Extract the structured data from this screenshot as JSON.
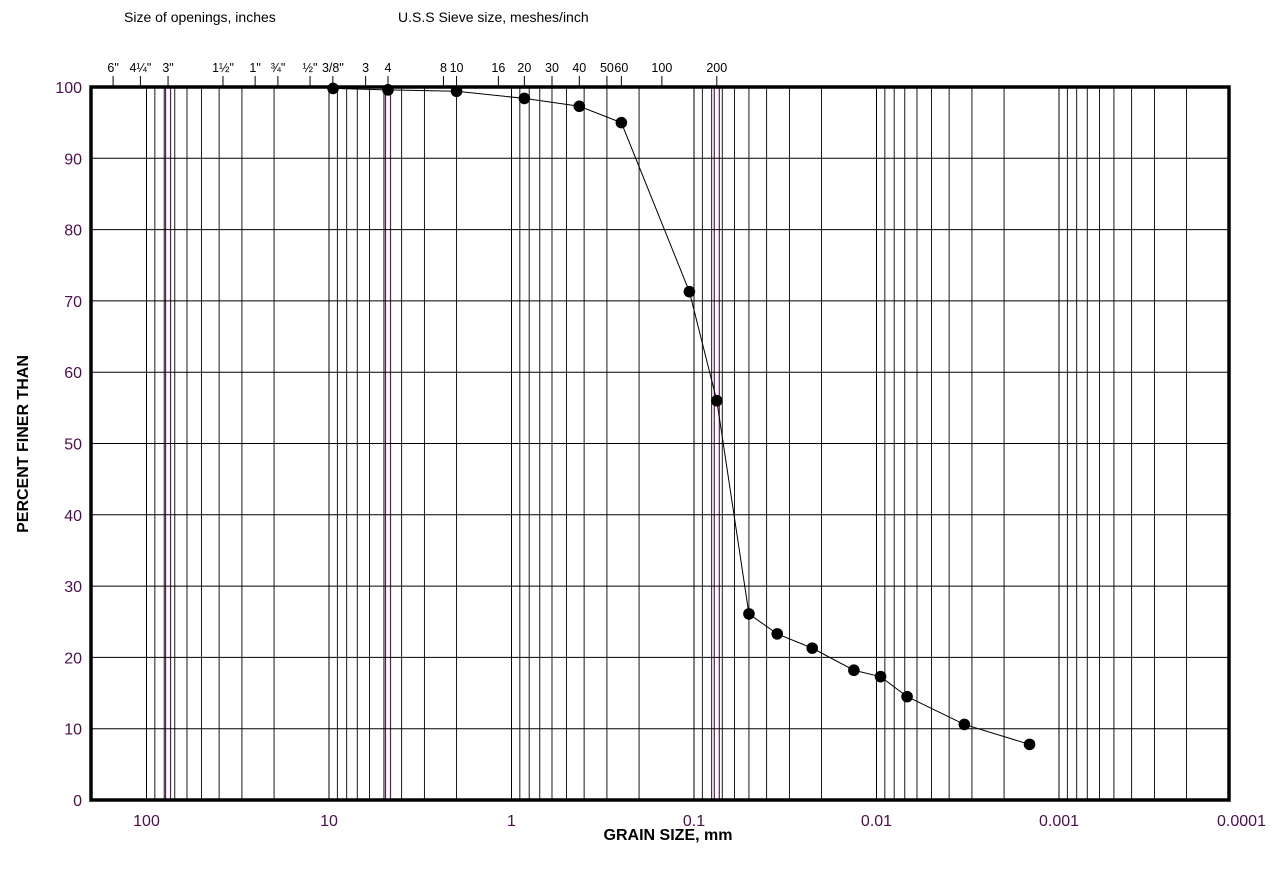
{
  "header": {
    "openings_label": "Size of openings, inches",
    "sieve_label": "U.S.S Sieve size, meshes/inch"
  },
  "chart_data": {
    "type": "scatter",
    "title": "",
    "xlabel": "GRAIN SIZE, mm",
    "ylabel": "PERCENT FINER THAN",
    "x_scale": "log",
    "x_reversed": true,
    "xlim": [
      200,
      0.0001
    ],
    "ylim": [
      0,
      100
    ],
    "grid": true,
    "x_ticks": [
      {
        "value": 100,
        "label": "100"
      },
      {
        "value": 10,
        "label": "10"
      },
      {
        "value": 1,
        "label": "1"
      },
      {
        "value": 0.1,
        "label": "0.1"
      },
      {
        "value": 0.01,
        "label": "0.01"
      },
      {
        "value": 0.001,
        "label": "0.001"
      },
      {
        "value": 0.0001,
        "label": "0.0001"
      }
    ],
    "y_ticks": [
      0,
      10,
      20,
      30,
      40,
      50,
      60,
      70,
      80,
      90,
      100
    ],
    "inch_sizes": [
      {
        "label": "6\"",
        "mm": 152.4
      },
      {
        "label": "4¼\"",
        "mm": 108
      },
      {
        "label": "3\"",
        "mm": 76.2
      },
      {
        "label": "1½\"",
        "mm": 38.1
      },
      {
        "label": "1\"",
        "mm": 25.4
      },
      {
        "label": "¾\"",
        "mm": 19.05
      },
      {
        "label": "½\"",
        "mm": 12.7
      },
      {
        "label": "3/8\"",
        "mm": 9.525
      }
    ],
    "sieve_sizes": [
      {
        "label": "3",
        "mm": 6.3
      },
      {
        "label": "4",
        "mm": 4.75
      },
      {
        "label": "8",
        "mm": 2.36
      },
      {
        "label": "10",
        "mm": 2.0
      },
      {
        "label": "16",
        "mm": 1.18
      },
      {
        "label": "20",
        "mm": 0.85
      },
      {
        "label": "30",
        "mm": 0.6
      },
      {
        "label": "40",
        "mm": 0.425
      },
      {
        "label": "50",
        "mm": 0.3
      },
      {
        "label": "60",
        "mm": 0.25
      },
      {
        "label": "100",
        "mm": 0.15
      },
      {
        "label": "200",
        "mm": 0.075
      }
    ],
    "highlight_lines_mm": [
      76.2,
      4.75,
      0.075
    ],
    "series": [
      {
        "points": [
          {
            "x": 9.5,
            "y": 99.8
          },
          {
            "x": 4.75,
            "y": 99.6
          },
          {
            "x": 2.0,
            "y": 99.4
          },
          {
            "x": 0.85,
            "y": 98.4
          },
          {
            "x": 0.425,
            "y": 97.3
          },
          {
            "x": 0.25,
            "y": 95.0
          },
          {
            "x": 0.106,
            "y": 71.3
          },
          {
            "x": 0.075,
            "y": 56.0
          },
          {
            "x": 0.05,
            "y": 26.1
          },
          {
            "x": 0.035,
            "y": 23.3
          },
          {
            "x": 0.0225,
            "y": 21.3
          },
          {
            "x": 0.0133,
            "y": 18.2
          },
          {
            "x": 0.0095,
            "y": 17.3
          },
          {
            "x": 0.0068,
            "y": 14.5
          },
          {
            "x": 0.0033,
            "y": 10.6
          },
          {
            "x": 0.00145,
            "y": 7.8
          }
        ]
      }
    ],
    "colors": {
      "grid": "#000000",
      "tick_labels": "#4b0f4b",
      "highlight": "#5a1f5a",
      "marker": "#000000",
      "line": "#000000"
    }
  }
}
